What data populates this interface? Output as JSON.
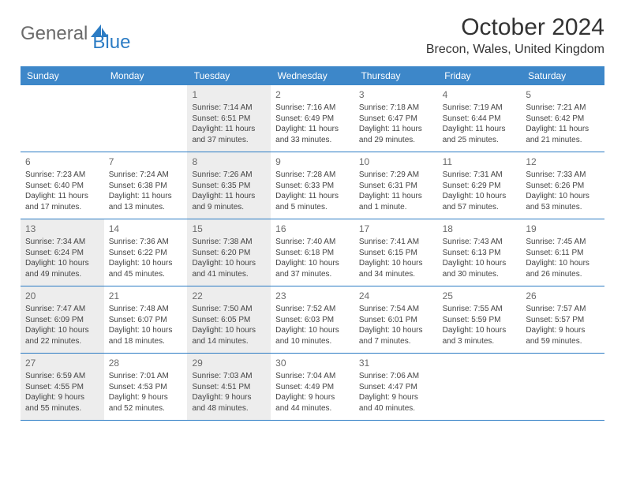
{
  "logo": {
    "textA": "General",
    "textB": "Blue"
  },
  "title": "October 2024",
  "location": "Brecon, Wales, United Kingdom",
  "colors": {
    "headerBg": "#3d87c9",
    "headerText": "#ffffff",
    "rowBorder": "#2c7cc4",
    "shadedBg": "#ededed",
    "dayNum": "#6b6b6b",
    "bodyText": "#444444",
    "logoGray": "#6b6b6b",
    "logoBlue": "#2c7cc4"
  },
  "dayNames": [
    "Sunday",
    "Monday",
    "Tuesday",
    "Wednesday",
    "Thursday",
    "Friday",
    "Saturday"
  ],
  "weeks": [
    [
      {
        "day": null
      },
      {
        "day": null
      },
      {
        "day": 1,
        "shaded": true,
        "sunrise": "7:14 AM",
        "sunset": "6:51 PM",
        "daylight": "11 hours and 37 minutes."
      },
      {
        "day": 2,
        "sunrise": "7:16 AM",
        "sunset": "6:49 PM",
        "daylight": "11 hours and 33 minutes."
      },
      {
        "day": 3,
        "sunrise": "7:18 AM",
        "sunset": "6:47 PM",
        "daylight": "11 hours and 29 minutes."
      },
      {
        "day": 4,
        "sunrise": "7:19 AM",
        "sunset": "6:44 PM",
        "daylight": "11 hours and 25 minutes."
      },
      {
        "day": 5,
        "sunrise": "7:21 AM",
        "sunset": "6:42 PM",
        "daylight": "11 hours and 21 minutes."
      }
    ],
    [
      {
        "day": 6,
        "sunrise": "7:23 AM",
        "sunset": "6:40 PM",
        "daylight": "11 hours and 17 minutes."
      },
      {
        "day": 7,
        "sunrise": "7:24 AM",
        "sunset": "6:38 PM",
        "daylight": "11 hours and 13 minutes."
      },
      {
        "day": 8,
        "shaded": true,
        "sunrise": "7:26 AM",
        "sunset": "6:35 PM",
        "daylight": "11 hours and 9 minutes."
      },
      {
        "day": 9,
        "sunrise": "7:28 AM",
        "sunset": "6:33 PM",
        "daylight": "11 hours and 5 minutes."
      },
      {
        "day": 10,
        "sunrise": "7:29 AM",
        "sunset": "6:31 PM",
        "daylight": "11 hours and 1 minute."
      },
      {
        "day": 11,
        "sunrise": "7:31 AM",
        "sunset": "6:29 PM",
        "daylight": "10 hours and 57 minutes."
      },
      {
        "day": 12,
        "sunrise": "7:33 AM",
        "sunset": "6:26 PM",
        "daylight": "10 hours and 53 minutes."
      }
    ],
    [
      {
        "day": 13,
        "shaded": true,
        "sunrise": "7:34 AM",
        "sunset": "6:24 PM",
        "daylight": "10 hours and 49 minutes."
      },
      {
        "day": 14,
        "sunrise": "7:36 AM",
        "sunset": "6:22 PM",
        "daylight": "10 hours and 45 minutes."
      },
      {
        "day": 15,
        "shaded": true,
        "sunrise": "7:38 AM",
        "sunset": "6:20 PM",
        "daylight": "10 hours and 41 minutes."
      },
      {
        "day": 16,
        "sunrise": "7:40 AM",
        "sunset": "6:18 PM",
        "daylight": "10 hours and 37 minutes."
      },
      {
        "day": 17,
        "sunrise": "7:41 AM",
        "sunset": "6:15 PM",
        "daylight": "10 hours and 34 minutes."
      },
      {
        "day": 18,
        "sunrise": "7:43 AM",
        "sunset": "6:13 PM",
        "daylight": "10 hours and 30 minutes."
      },
      {
        "day": 19,
        "sunrise": "7:45 AM",
        "sunset": "6:11 PM",
        "daylight": "10 hours and 26 minutes."
      }
    ],
    [
      {
        "day": 20,
        "shaded": true,
        "sunrise": "7:47 AM",
        "sunset": "6:09 PM",
        "daylight": "10 hours and 22 minutes."
      },
      {
        "day": 21,
        "sunrise": "7:48 AM",
        "sunset": "6:07 PM",
        "daylight": "10 hours and 18 minutes."
      },
      {
        "day": 22,
        "shaded": true,
        "sunrise": "7:50 AM",
        "sunset": "6:05 PM",
        "daylight": "10 hours and 14 minutes."
      },
      {
        "day": 23,
        "sunrise": "7:52 AM",
        "sunset": "6:03 PM",
        "daylight": "10 hours and 10 minutes."
      },
      {
        "day": 24,
        "sunrise": "7:54 AM",
        "sunset": "6:01 PM",
        "daylight": "10 hours and 7 minutes."
      },
      {
        "day": 25,
        "sunrise": "7:55 AM",
        "sunset": "5:59 PM",
        "daylight": "10 hours and 3 minutes."
      },
      {
        "day": 26,
        "sunrise": "7:57 AM",
        "sunset": "5:57 PM",
        "daylight": "9 hours and 59 minutes."
      }
    ],
    [
      {
        "day": 27,
        "shaded": true,
        "sunrise": "6:59 AM",
        "sunset": "4:55 PM",
        "daylight": "9 hours and 55 minutes."
      },
      {
        "day": 28,
        "sunrise": "7:01 AM",
        "sunset": "4:53 PM",
        "daylight": "9 hours and 52 minutes."
      },
      {
        "day": 29,
        "shaded": true,
        "sunrise": "7:03 AM",
        "sunset": "4:51 PM",
        "daylight": "9 hours and 48 minutes."
      },
      {
        "day": 30,
        "sunrise": "7:04 AM",
        "sunset": "4:49 PM",
        "daylight": "9 hours and 44 minutes."
      },
      {
        "day": 31,
        "sunrise": "7:06 AM",
        "sunset": "4:47 PM",
        "daylight": "9 hours and 40 minutes."
      },
      {
        "day": null
      },
      {
        "day": null
      }
    ]
  ],
  "labels": {
    "sunrise": "Sunrise:",
    "sunset": "Sunset:",
    "daylight": "Daylight:"
  }
}
